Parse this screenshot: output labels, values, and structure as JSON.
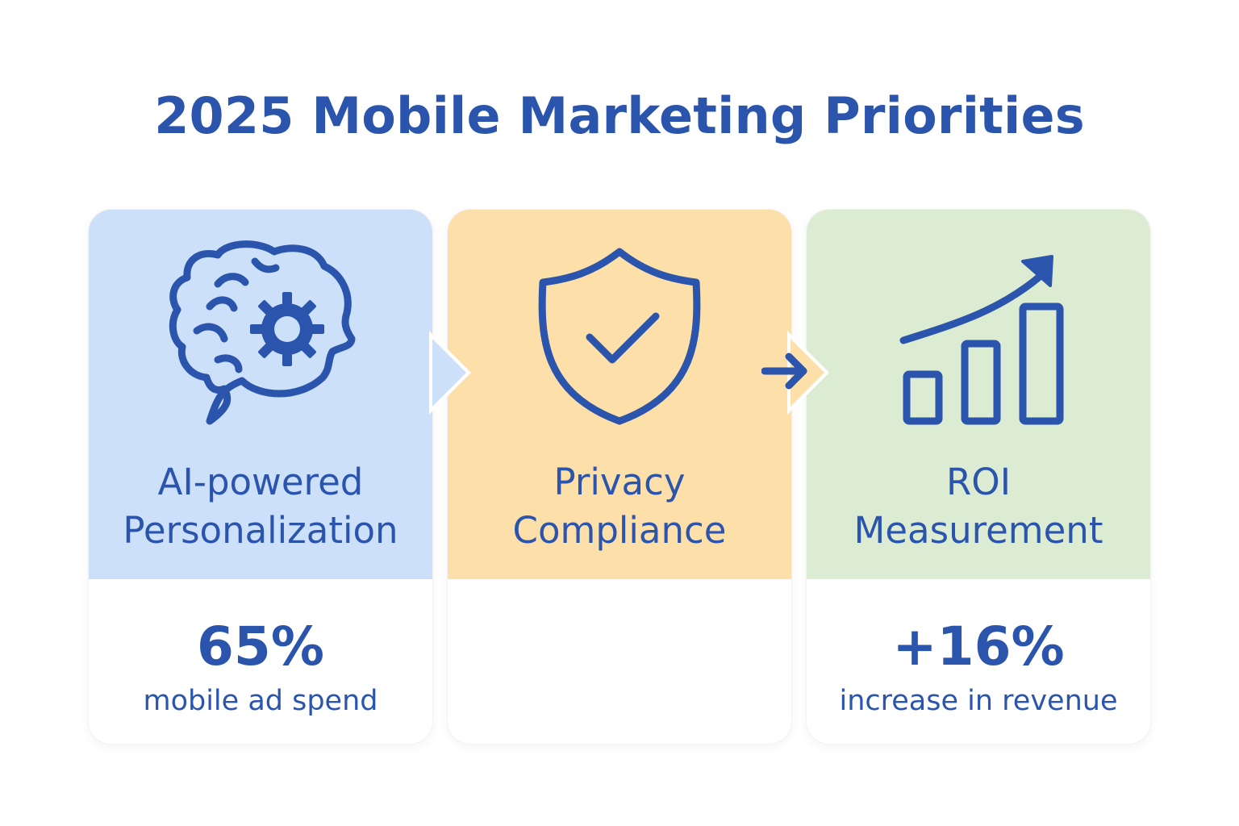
{
  "title": "2025 Mobile Marketing Priorities",
  "colors": {
    "accent": "#2b55ad",
    "card_blue": "#cce0fa",
    "card_orange": "#fde0a9",
    "card_green": "#dcecd2"
  },
  "cards": [
    {
      "icon": "brain-gear-icon",
      "label_line1": "AI-powered",
      "label_line2": "Personalization",
      "stat_value": "65%",
      "stat_caption": "mobile ad spend"
    },
    {
      "icon": "shield-check-icon",
      "label_line1": "Privacy",
      "label_line2": "Compliance",
      "stat_value": "",
      "stat_caption": ""
    },
    {
      "icon": "bar-chart-growth-icon",
      "label_line1": "ROI",
      "label_line2": "Measurement",
      "stat_value": "+16%",
      "stat_caption": "increase in revenue"
    }
  ]
}
